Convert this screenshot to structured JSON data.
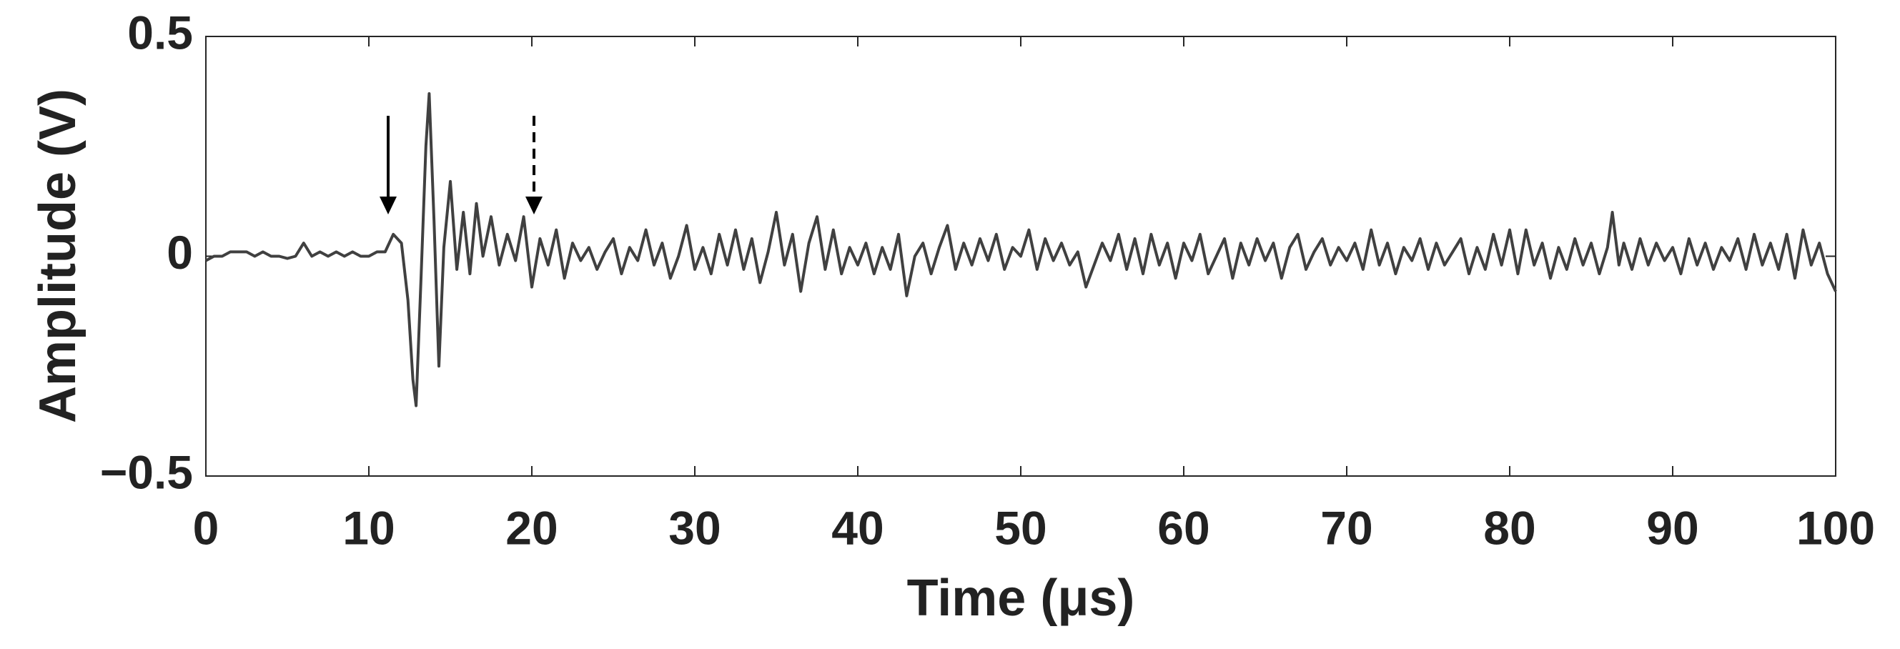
{
  "chart_data": {
    "type": "line",
    "x_label": "Time (μs)",
    "y_label": "Amplitude (V)",
    "x": [
      0,
      0.5,
      1,
      1.5,
      2,
      2.5,
      3,
      3.5,
      4,
      4.5,
      5,
      5.5,
      6,
      6.5,
      7,
      7.5,
      8,
      8.5,
      9,
      9.5,
      10,
      10.5,
      11,
      11.5,
      12,
      12.4,
      12.7,
      12.9,
      13.2,
      13.5,
      13.7,
      14,
      14.3,
      14.6,
      15,
      15.4,
      15.8,
      16.2,
      16.6,
      17,
      17.5,
      18,
      18.5,
      19,
      19.5,
      20,
      20.5,
      21,
      21.5,
      22,
      22.5,
      23,
      23.5,
      24,
      24.5,
      25,
      25.5,
      26,
      26.5,
      27,
      27.5,
      28,
      28.5,
      29,
      29.5,
      30,
      30.5,
      31,
      31.5,
      32,
      32.5,
      33,
      33.5,
      34,
      34.5,
      35,
      35.5,
      36,
      36.5,
      37,
      37.5,
      38,
      38.5,
      39,
      39.5,
      40,
      40.5,
      41,
      41.5,
      42,
      42.5,
      43,
      43.5,
      44,
      44.5,
      45,
      45.5,
      46,
      46.5,
      47,
      47.5,
      48,
      48.5,
      49,
      49.5,
      50,
      50.5,
      51,
      51.5,
      52,
      52.5,
      53,
      53.5,
      54,
      54.5,
      55,
      55.5,
      56,
      56.5,
      57,
      57.5,
      58,
      58.5,
      59,
      59.5,
      60,
      60.5,
      61,
      61.5,
      62,
      62.5,
      63,
      63.5,
      64,
      64.5,
      65,
      65.5,
      66,
      66.5,
      67,
      67.5,
      68,
      68.5,
      69,
      69.5,
      70,
      70.5,
      71,
      71.5,
      72,
      72.5,
      73,
      73.5,
      74,
      74.5,
      75,
      75.5,
      76,
      76.5,
      77,
      77.5,
      78,
      78.5,
      79,
      79.5,
      80,
      80.5,
      81,
      81.5,
      82,
      82.5,
      83,
      83.5,
      84,
      84.5,
      85,
      85.5,
      86,
      86.3,
      86.7,
      87,
      87.5,
      88,
      88.5,
      89,
      89.5,
      90,
      90.5,
      91,
      91.5,
      92,
      92.5,
      93,
      93.5,
      94,
      94.5,
      95,
      95.5,
      96,
      96.5,
      97,
      97.5,
      98,
      98.5,
      99,
      99.5,
      100
    ],
    "series": [
      {
        "color": "#404040",
        "values": [
          -0.01,
          0,
          0,
          0.01,
          0.01,
          0.01,
          0,
          0.01,
          0,
          0,
          -0.005,
          0,
          0.03,
          0,
          0.01,
          0,
          0.01,
          0,
          0.01,
          0,
          0,
          0.01,
          0.01,
          0.05,
          0.03,
          -0.1,
          -0.28,
          -0.34,
          -0.05,
          0.25,
          0.37,
          0.08,
          -0.25,
          0.02,
          0.17,
          -0.03,
          0.1,
          -0.04,
          0.12,
          0,
          0.09,
          -0.02,
          0.05,
          -0.01,
          0.09,
          -0.07,
          0.04,
          -0.02,
          0.06,
          -0.05,
          0.03,
          -0.01,
          0.02,
          -0.03,
          0.01,
          0.04,
          -0.04,
          0.02,
          -0.01,
          0.06,
          -0.02,
          0.03,
          -0.05,
          0,
          0.07,
          -0.03,
          0.02,
          -0.04,
          0.05,
          -0.02,
          0.06,
          -0.03,
          0.04,
          -0.06,
          0.01,
          0.1,
          -0.02,
          0.05,
          -0.08,
          0.03,
          0.09,
          -0.03,
          0.06,
          -0.04,
          0.02,
          -0.02,
          0.03,
          -0.04,
          0.02,
          -0.03,
          0.05,
          -0.09,
          0,
          0.03,
          -0.04,
          0.02,
          0.07,
          -0.03,
          0.03,
          -0.02,
          0.04,
          -0.01,
          0.05,
          -0.03,
          0.02,
          0,
          0.06,
          -0.03,
          0.04,
          -0.01,
          0.03,
          -0.02,
          0.01,
          -0.07,
          -0.02,
          0.03,
          -0.01,
          0.05,
          -0.03,
          0.04,
          -0.04,
          0.05,
          -0.02,
          0.03,
          -0.05,
          0.03,
          -0.01,
          0.05,
          -0.04,
          0,
          0.04,
          -0.05,
          0.03,
          -0.02,
          0.04,
          -0.01,
          0.03,
          -0.05,
          0.02,
          0.05,
          -0.03,
          0.01,
          0.04,
          -0.02,
          0.02,
          -0.01,
          0.03,
          -0.03,
          0.06,
          -0.02,
          0.03,
          -0.04,
          0.02,
          -0.01,
          0.04,
          -0.03,
          0.03,
          -0.02,
          0.01,
          0.04,
          -0.04,
          0.02,
          -0.03,
          0.05,
          -0.02,
          0.06,
          -0.04,
          0.06,
          -0.02,
          0.03,
          -0.05,
          0.02,
          -0.03,
          0.04,
          -0.02,
          0.03,
          -0.04,
          0.02,
          0.1,
          -0.02,
          0.03,
          -0.03,
          0.04,
          -0.02,
          0.03,
          -0.01,
          0.02,
          -0.04,
          0.04,
          -0.02,
          0.03,
          -0.03,
          0.02,
          -0.01,
          0.04,
          -0.03,
          0.05,
          -0.02,
          0.03,
          -0.03,
          0.05,
          -0.05,
          0.06,
          -0.02,
          0.03,
          -0.04,
          -0.08
        ]
      }
    ],
    "xlim": [
      0,
      100
    ],
    "xticks": [
      0,
      10,
      20,
      30,
      40,
      50,
      60,
      70,
      80,
      90,
      100
    ],
    "ylim": [
      -0.5,
      0.5
    ],
    "yticks": [
      {
        "value": -0.5,
        "label": "−0.5"
      },
      0,
      0.5
    ],
    "grid": false
  }
}
